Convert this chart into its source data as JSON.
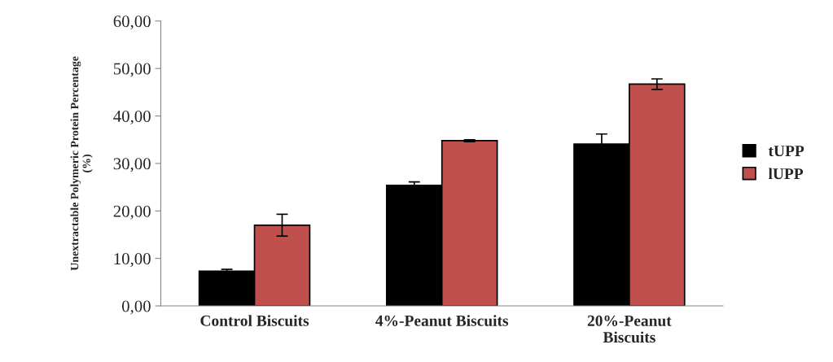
{
  "chart_data": {
    "type": "bar",
    "ylabel": "Unextractable Polymeric Protein Percentage\n(%)",
    "categories": [
      "Control Biscuits",
      "4%-Peanut Biscuits",
      "20%-Peanut\nBiscuits"
    ],
    "series": [
      {
        "name": "tUPP",
        "color": "#000000",
        "values": [
          7.3,
          25.4,
          34.1
        ],
        "errors": [
          0.4,
          0.7,
          2.1
        ]
      },
      {
        "name": "lUPP",
        "color": "#c0504d",
        "values": [
          17.0,
          34.8,
          46.7
        ],
        "errors": [
          2.3,
          0.2,
          1.1
        ]
      }
    ],
    "ylim": [
      0,
      60
    ],
    "yticks": [
      {
        "value": 0,
        "label": "0,00"
      },
      {
        "value": 10,
        "label": "10,00"
      },
      {
        "value": 20,
        "label": "20,00"
      },
      {
        "value": 30,
        "label": "30,00"
      },
      {
        "value": 40,
        "label": "40,00"
      },
      {
        "value": 50,
        "label": "50,00"
      },
      {
        "value": 60,
        "label": "60,00"
      }
    ],
    "grid": false,
    "legend": "right"
  }
}
